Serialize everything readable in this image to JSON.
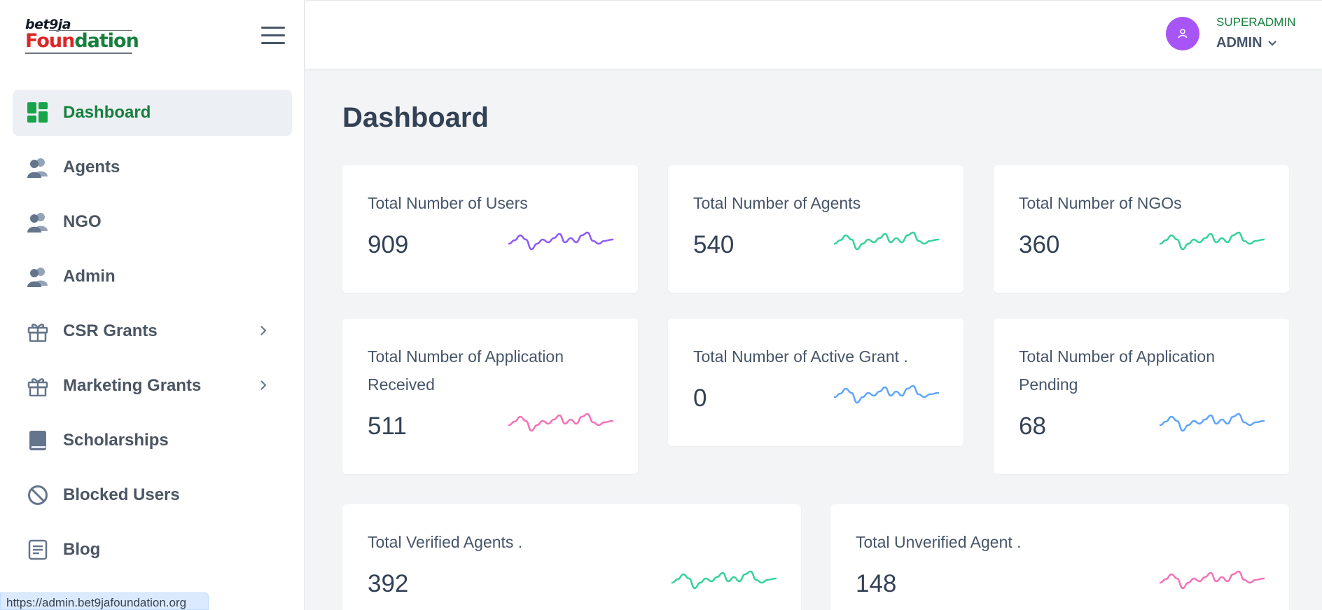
{
  "logo": {
    "top": "bet9ja",
    "bottom_red": "Foun",
    "bottom_green": "dation"
  },
  "sidebar": {
    "items": [
      {
        "label": "Dashboard",
        "icon": "dashboard-grid-icon",
        "active": true
      },
      {
        "label": "Agents",
        "icon": "users-icon"
      },
      {
        "label": "NGO",
        "icon": "users-icon"
      },
      {
        "label": "Admin",
        "icon": "users-icon"
      },
      {
        "label": "CSR Grants",
        "icon": "gift-icon",
        "has_submenu": true
      },
      {
        "label": "Marketing Grants",
        "icon": "gift-icon",
        "has_submenu": true
      },
      {
        "label": "Scholarships",
        "icon": "book-icon"
      },
      {
        "label": "Blocked Users",
        "icon": "blocked-icon"
      },
      {
        "label": "Blog",
        "icon": "blog-icon"
      }
    ]
  },
  "header": {
    "role": "SUPERADMIN",
    "user": "ADMIN"
  },
  "main": {
    "title": "Dashboard"
  },
  "cards": [
    {
      "title": "Total Number of Users",
      "value": "909",
      "color": "#8b5cf6"
    },
    {
      "title": "Total Number of Agents",
      "value": "540",
      "color": "#34d399"
    },
    {
      "title": "Total Number of NGOs",
      "value": "360",
      "color": "#34d399"
    },
    {
      "title": "Total Number of Application Received",
      "value": "511",
      "color": "#f472b6"
    },
    {
      "title": "Total Number of Active Grant .",
      "value": "0",
      "color": "#60a5fa"
    },
    {
      "title": "Total Number of Application Pending",
      "value": "68",
      "color": "#60a5fa"
    },
    {
      "title": "Total Verified Agents .",
      "value": "392",
      "color": "#34d399"
    },
    {
      "title": "Total Unverified Agent .",
      "value": "148",
      "color": "#f472b6"
    }
  ],
  "status_url": "https://admin.bet9jafoundation.org",
  "colors": {
    "accent_green": "#15803d",
    "avatar": "#a855f7"
  }
}
